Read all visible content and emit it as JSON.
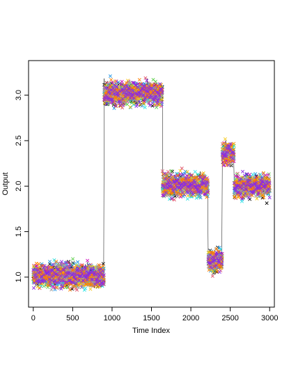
{
  "chart_data": {
    "type": "scatter",
    "title": "",
    "xlabel": "Time Index",
    "ylabel": "Output",
    "xlim": [
      -60,
      3060
    ],
    "ylim": [
      0.67,
      3.38
    ],
    "x_ticks": [
      0,
      500,
      1000,
      1500,
      2000,
      2500,
      3000
    ],
    "y_ticks": [
      1.0,
      1.5,
      2.0,
      2.5,
      3.0
    ],
    "x_tick_labels": [
      "0",
      "500",
      "1000",
      "1500",
      "2000",
      "2500",
      "3000"
    ],
    "y_tick_labels": [
      "1.0",
      "1.5",
      "2.0",
      "2.5",
      "3.0"
    ],
    "grid": false,
    "legend": "none",
    "marker": "x",
    "connected_by_line": true,
    "noise_spread": 0.1,
    "series_colors": [
      "#000000",
      "#DF536B",
      "#61D04F",
      "#2297E6",
      "#28E2E5",
      "#CD0BBC",
      "#F5C710",
      "#9E9E9E",
      "#FF7F00",
      "#8A2BE2"
    ],
    "segments": [
      {
        "x_start": 0,
        "x_end": 900,
        "mean": 1.02
      },
      {
        "x_start": 900,
        "x_end": 1640,
        "mean": 3.02
      },
      {
        "x_start": 1640,
        "x_end": 2220,
        "mean": 2.01
      },
      {
        "x_start": 2220,
        "x_end": 2400,
        "mean": 1.19
      },
      {
        "x_start": 2400,
        "x_end": 2550,
        "mean": 2.36
      },
      {
        "x_start": 2550,
        "x_end": 3000,
        "mean": 2.0
      }
    ]
  }
}
